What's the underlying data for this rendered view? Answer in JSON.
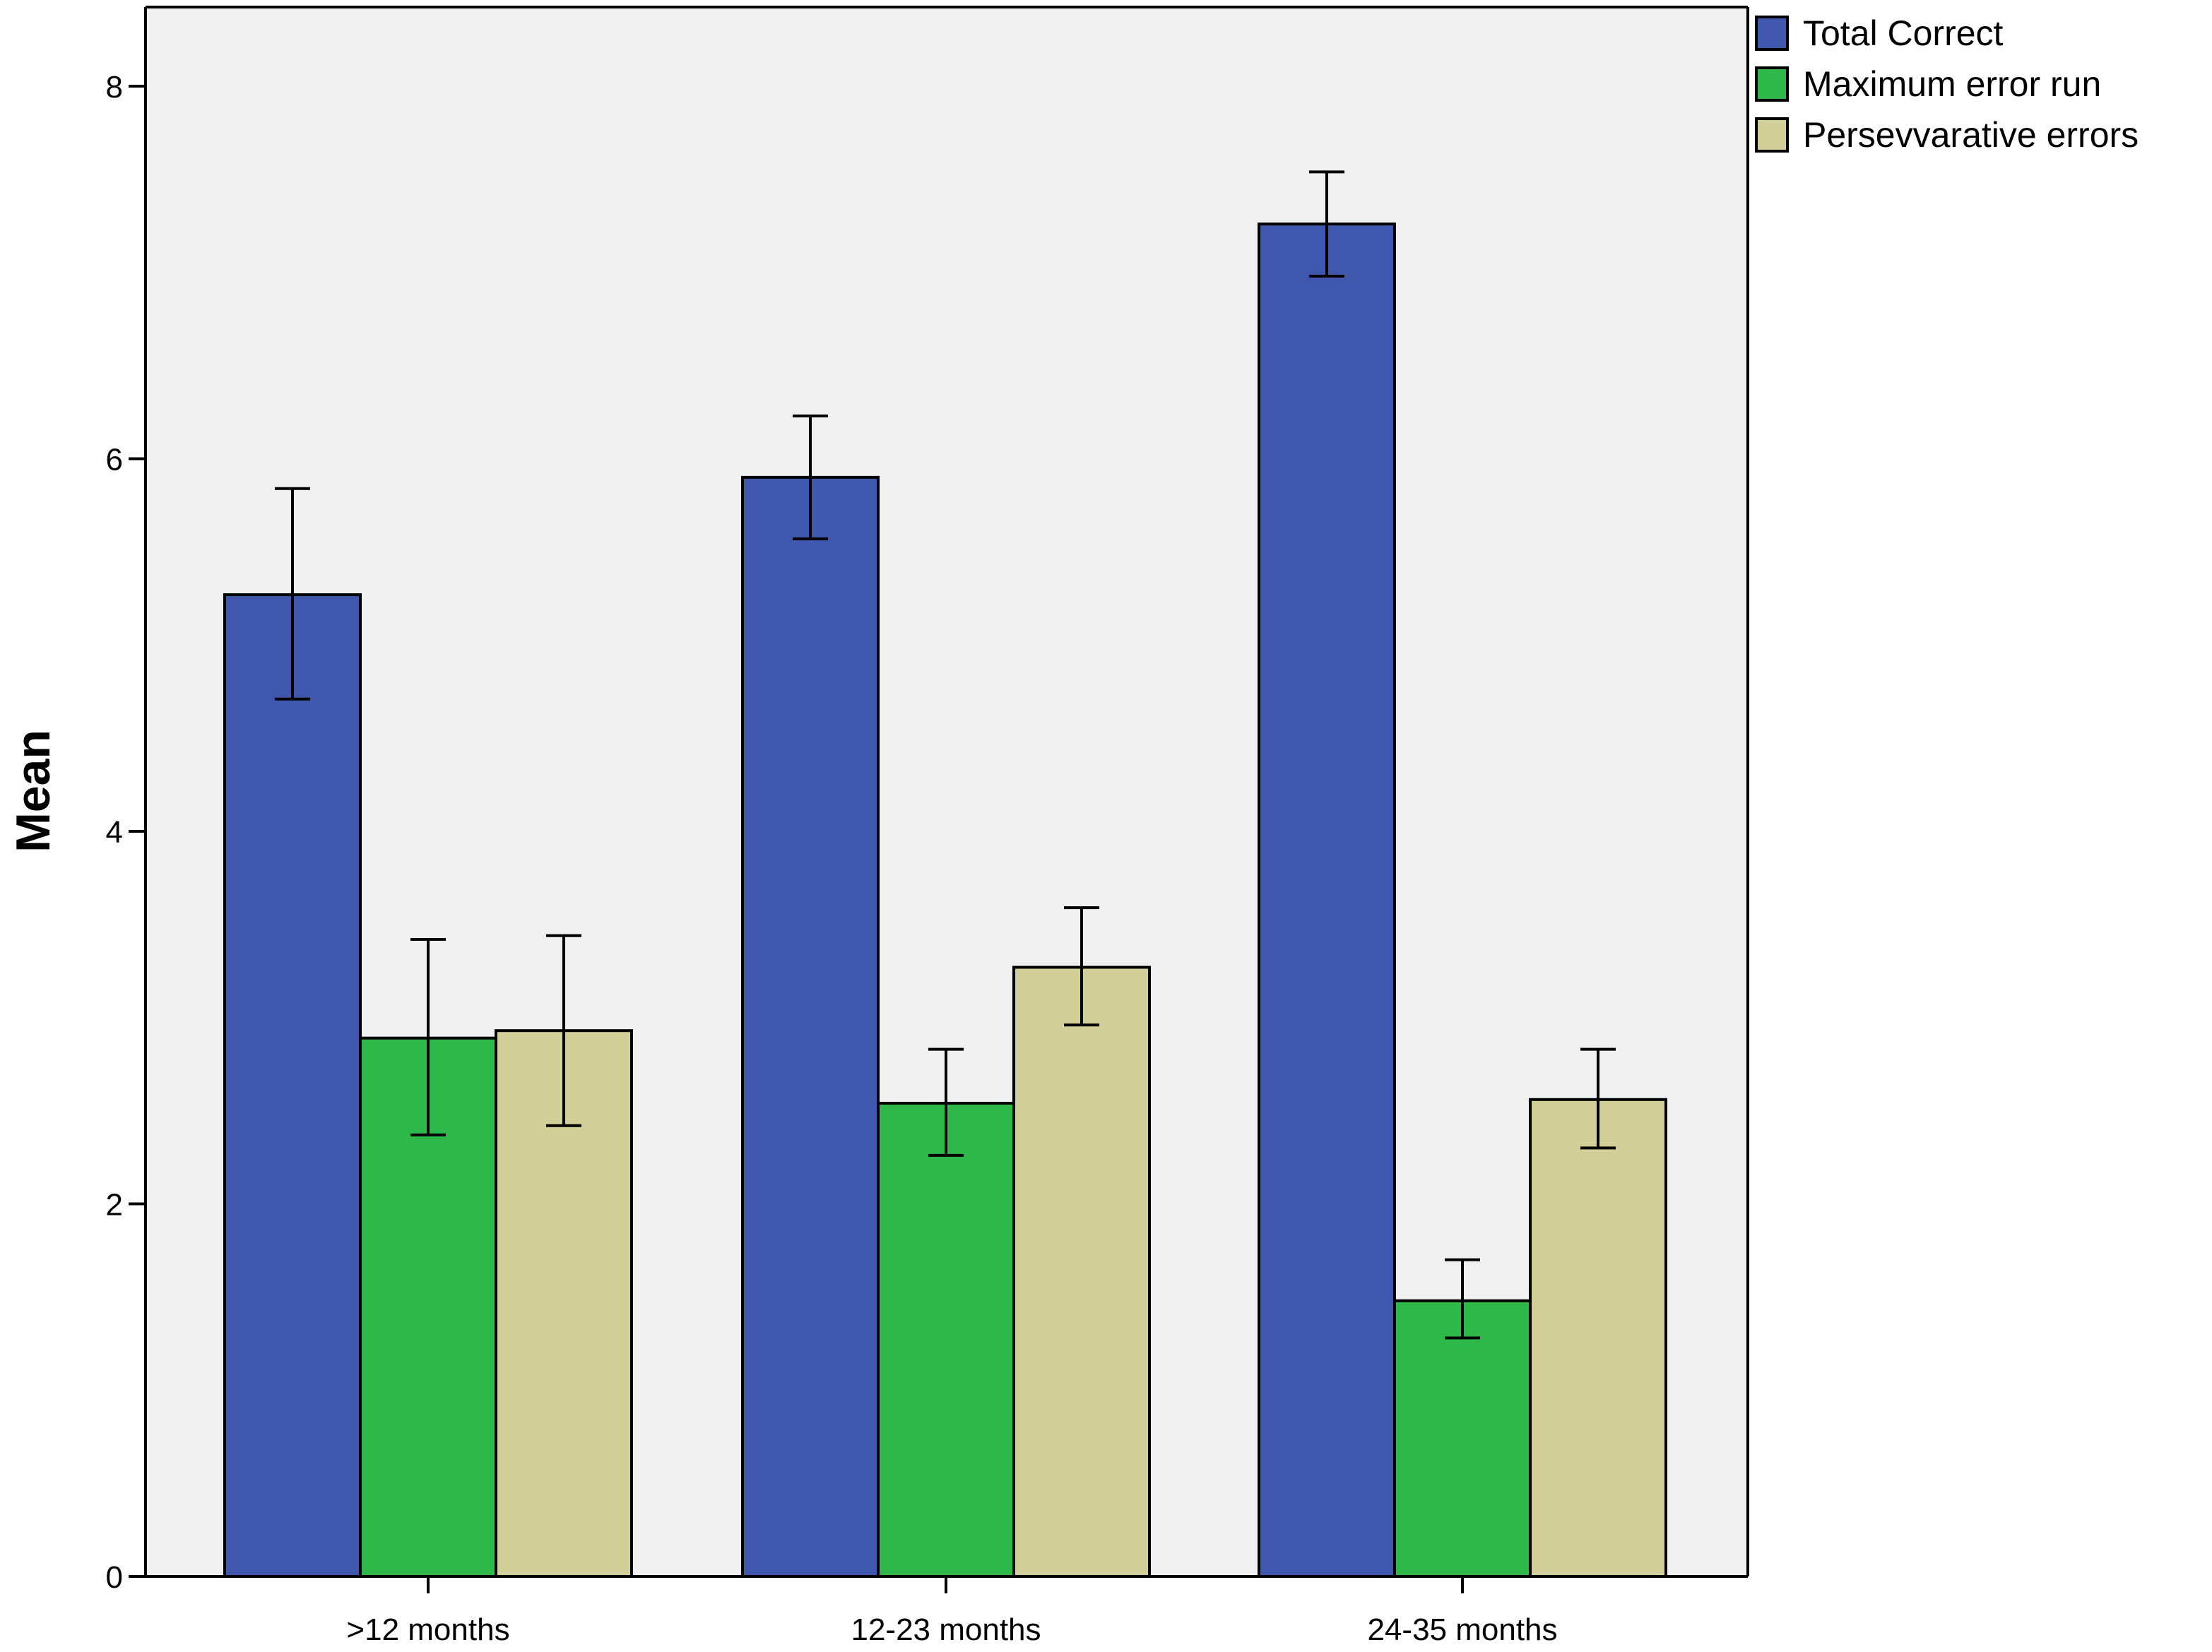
{
  "chart_data": {
    "type": "bar",
    "title": "",
    "xlabel": "",
    "ylabel": "Mean",
    "ylim": [
      0,
      8.4
    ],
    "yticks": [
      0,
      2,
      4,
      6,
      8
    ],
    "grid": false,
    "legend_position": "top-right",
    "categories": [
      ">12 months",
      "12-23 months",
      "24-35 months"
    ],
    "series": [
      {
        "name": "Total Correct",
        "color": "#3f57ad",
        "values": [
          5.27,
          5.9,
          7.26
        ],
        "error_low": [
          4.71,
          5.57,
          6.98
        ],
        "error_high": [
          5.84,
          6.23,
          7.54
        ]
      },
      {
        "name": "Maximum error run",
        "color": "#2eb84a",
        "values": [
          2.89,
          2.54,
          1.48
        ],
        "error_low": [
          2.37,
          2.26,
          1.28
        ],
        "error_high": [
          3.42,
          2.83,
          1.7
        ]
      },
      {
        "name": "Persevvarative errors",
        "color": "#d3cf98",
        "values": [
          2.93,
          3.27,
          2.56
        ],
        "error_low": [
          2.42,
          2.96,
          2.3
        ],
        "error_high": [
          3.44,
          3.59,
          2.83
        ]
      }
    ]
  }
}
